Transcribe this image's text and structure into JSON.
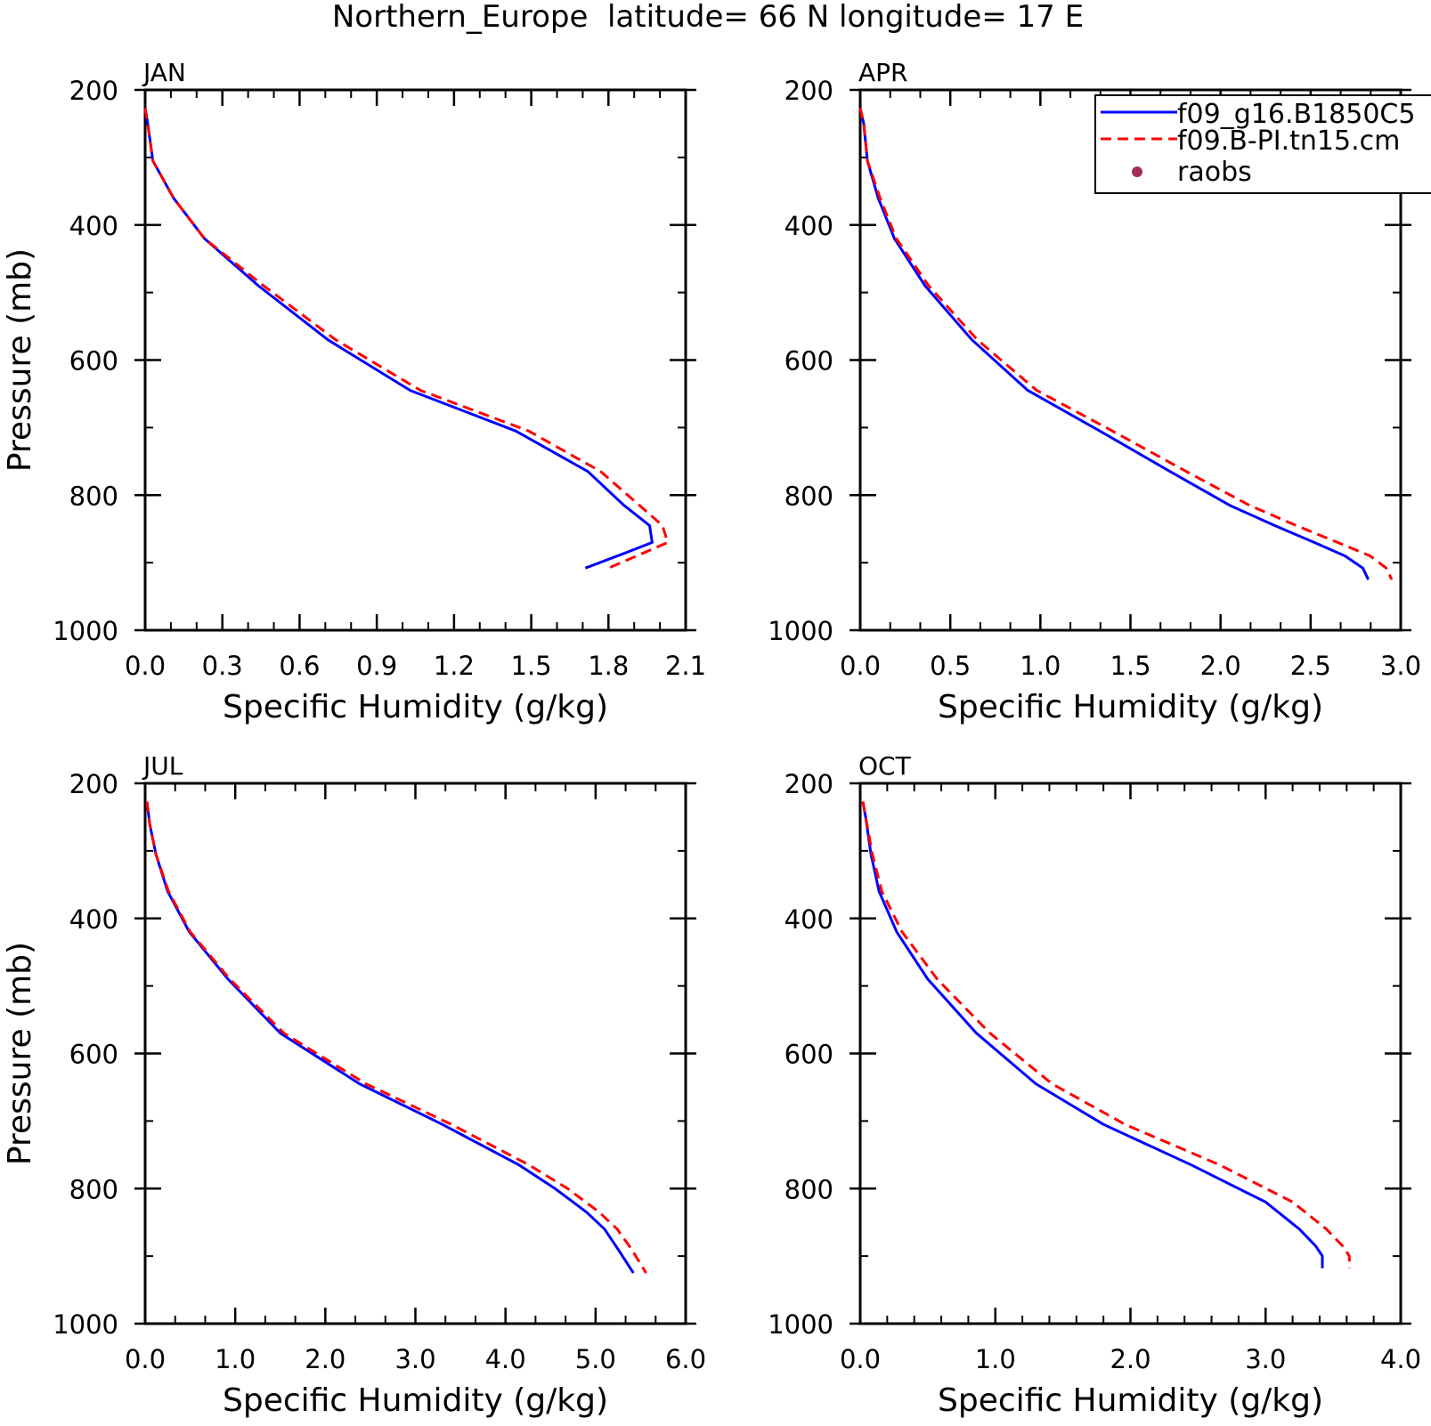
{
  "figure_title": "Northern_Europe  latitude= 66 N longitude= 17 E",
  "legend": {
    "entries": [
      {
        "label": "f09_g16.B1850C5",
        "color": "#0000ff",
        "style": "solid"
      },
      {
        "label": "f09.B-PI.tn15.cm",
        "color": "#ff0000",
        "style": "dashed"
      },
      {
        "label": "raobs",
        "color": "#a0305a",
        "style": "dot"
      }
    ]
  },
  "chart_data": [
    {
      "type": "line",
      "panel": "JAN",
      "xlabel": "Specific Humidity (g/kg)",
      "ylabel": "Pressure (mb)",
      "xlim": [
        0,
        2.1
      ],
      "ylim": [
        200,
        1000
      ],
      "y_inverted": true,
      "xticks": [
        "0.0",
        "0.3",
        "0.6",
        "0.9",
        "1.2",
        "1.5",
        "1.8",
        "2.1"
      ],
      "yticks": [
        "200",
        "400",
        "600",
        "800",
        "1000"
      ],
      "series": [
        {
          "name": "f09_g16.B1850C5",
          "x": [
            0.0,
            0.01,
            0.03,
            0.11,
            0.23,
            0.44,
            0.71,
            1.03,
            1.44,
            1.72,
            1.86,
            1.96,
            1.97,
            1.87,
            1.71
          ],
          "y": [
            227,
            250,
            305,
            360,
            420,
            490,
            570,
            645,
            705,
            765,
            815,
            845,
            870,
            885,
            908
          ]
        },
        {
          "name": "f09.B-PI.tn15.cm",
          "x": [
            0.0,
            0.01,
            0.03,
            0.11,
            0.23,
            0.46,
            0.74,
            1.07,
            1.49,
            1.77,
            1.92,
            2.01,
            2.03,
            1.94,
            1.8
          ],
          "y": [
            227,
            250,
            305,
            360,
            420,
            490,
            570,
            645,
            705,
            765,
            815,
            845,
            870,
            885,
            908
          ]
        }
      ]
    },
    {
      "type": "line",
      "panel": "APR",
      "xlabel": "Specific Humidity (g/kg)",
      "ylabel": "",
      "xlim": [
        0,
        3.0
      ],
      "ylim": [
        200,
        1000
      ],
      "y_inverted": true,
      "xticks": [
        "0.0",
        "0.5",
        "1.0",
        "1.5",
        "2.0",
        "2.5",
        "3.0"
      ],
      "yticks": [
        "200",
        "400",
        "600",
        "800",
        "1000"
      ],
      "series": [
        {
          "name": "f09_g16.B1850C5",
          "x": [
            0.0,
            0.02,
            0.04,
            0.1,
            0.19,
            0.36,
            0.62,
            0.93,
            1.33,
            1.72,
            2.05,
            2.3,
            2.52,
            2.69,
            2.79,
            2.82
          ],
          "y": [
            227,
            250,
            305,
            360,
            420,
            490,
            570,
            645,
            705,
            765,
            815,
            845,
            870,
            890,
            908,
            925
          ]
        },
        {
          "name": "f09.B-PI.tn15.cm",
          "x": [
            0.0,
            0.02,
            0.04,
            0.11,
            0.2,
            0.38,
            0.65,
            0.98,
            1.4,
            1.81,
            2.16,
            2.42,
            2.65,
            2.83,
            2.92,
            2.95
          ],
          "y": [
            227,
            250,
            305,
            360,
            420,
            490,
            570,
            645,
            705,
            765,
            815,
            845,
            870,
            890,
            908,
            925
          ]
        }
      ]
    },
    {
      "type": "line",
      "panel": "JUL",
      "xlabel": "Specific Humidity (g/kg)",
      "ylabel": "Pressure (mb)",
      "xlim": [
        0,
        6.0
      ],
      "ylim": [
        200,
        1000
      ],
      "y_inverted": true,
      "xticks": [
        "0.0",
        "1.0",
        "2.0",
        "3.0",
        "4.0",
        "5.0",
        "6.0"
      ],
      "yticks": [
        "200",
        "400",
        "600",
        "800",
        "1000"
      ],
      "series": [
        {
          "name": "f09_g16.B1850C5",
          "x": [
            0.02,
            0.05,
            0.12,
            0.25,
            0.49,
            0.92,
            1.5,
            2.38,
            3.3,
            4.15,
            4.55,
            4.9,
            5.1,
            5.25,
            5.42
          ],
          "y": [
            227,
            260,
            305,
            360,
            420,
            490,
            570,
            645,
            705,
            765,
            800,
            835,
            860,
            890,
            925
          ]
        },
        {
          "name": "f09.B-PI.tn15.cm",
          "x": [
            0.02,
            0.05,
            0.12,
            0.26,
            0.5,
            0.94,
            1.54,
            2.45,
            3.4,
            4.26,
            4.69,
            5.04,
            5.24,
            5.4,
            5.56
          ],
          "y": [
            227,
            260,
            305,
            360,
            420,
            490,
            570,
            645,
            705,
            765,
            800,
            835,
            860,
            890,
            925
          ]
        }
      ]
    },
    {
      "type": "line",
      "panel": "OCT",
      "xlabel": "Specific Humidity (g/kg)",
      "ylabel": "",
      "xlim": [
        0,
        4.0
      ],
      "ylim": [
        200,
        1000
      ],
      "y_inverted": true,
      "xticks": [
        "0.0",
        "1.0",
        "2.0",
        "3.0",
        "4.0"
      ],
      "yticks": [
        "200",
        "400",
        "600",
        "800",
        "1000"
      ],
      "series": [
        {
          "name": "f09_g16.B1850C5",
          "x": [
            0.02,
            0.04,
            0.08,
            0.14,
            0.27,
            0.5,
            0.86,
            1.3,
            1.8,
            2.45,
            3.0,
            3.25,
            3.37,
            3.42,
            3.42
          ],
          "y": [
            227,
            250,
            305,
            360,
            420,
            490,
            570,
            645,
            705,
            765,
            820,
            860,
            885,
            900,
            918
          ]
        },
        {
          "name": "f09.B-PI.tn15.cm",
          "x": [
            0.02,
            0.04,
            0.09,
            0.16,
            0.31,
            0.57,
            0.96,
            1.42,
            1.96,
            2.66,
            3.2,
            3.45,
            3.57,
            3.62,
            3.62
          ],
          "y": [
            227,
            250,
            305,
            360,
            420,
            490,
            570,
            645,
            705,
            765,
            820,
            860,
            885,
            900,
            918
          ]
        }
      ]
    }
  ]
}
